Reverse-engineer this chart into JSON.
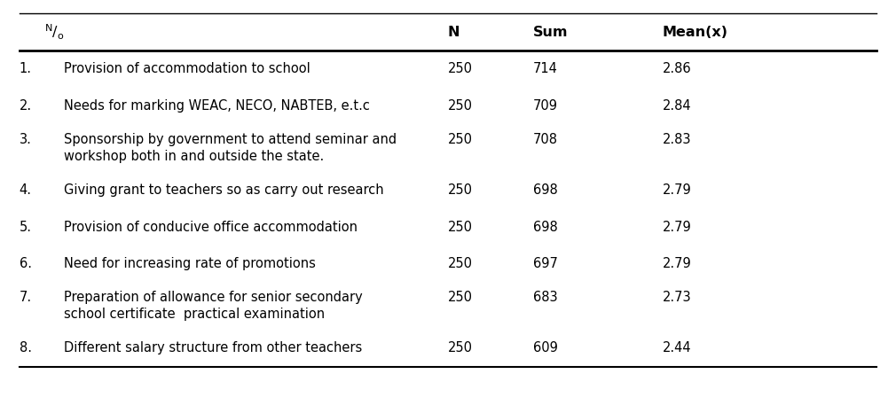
{
  "rows": [
    {
      "num": "1.",
      "description": "Provision of accommodation to school",
      "description2": "",
      "n": "250",
      "sum": "714",
      "mean": "2.86"
    },
    {
      "num": "2.",
      "description": "Needs for marking WEAC, NECO, NABTEB, e.t.c",
      "description2": "",
      "n": "250",
      "sum": "709",
      "mean": "2.84"
    },
    {
      "num": "3.",
      "description": "Sponsorship by government to attend seminar and",
      "description2": "workshop both in and outside the state.",
      "n": "250",
      "sum": "708",
      "mean": "2.83"
    },
    {
      "num": "4.",
      "description": "Giving grant to teachers so as carry out research",
      "description2": "",
      "n": "250",
      "sum": "698",
      "mean": "2.79"
    },
    {
      "num": "5.",
      "description": "Provision of conducive office accommodation",
      "description2": "",
      "n": "250",
      "sum": "698",
      "mean": "2.79"
    },
    {
      "num": "6.",
      "description": "Need for increasing rate of promotions",
      "description2": "",
      "n": "250",
      "sum": "697",
      "mean": "2.79"
    },
    {
      "num": "7.",
      "description": "Preparation of allowance for senior secondary",
      "description2": "school certificate  practical examination",
      "n": "250",
      "sum": "683",
      "mean": "2.73"
    },
    {
      "num": "8.",
      "description": "Different salary structure from other teachers",
      "description2": "",
      "n": "250",
      "sum": "609",
      "mean": "2.44"
    }
  ],
  "bg_color": "#ffffff",
  "text_color": "#000000",
  "line_color": "#000000",
  "font_size": 10.5,
  "header_font_size": 11.5
}
